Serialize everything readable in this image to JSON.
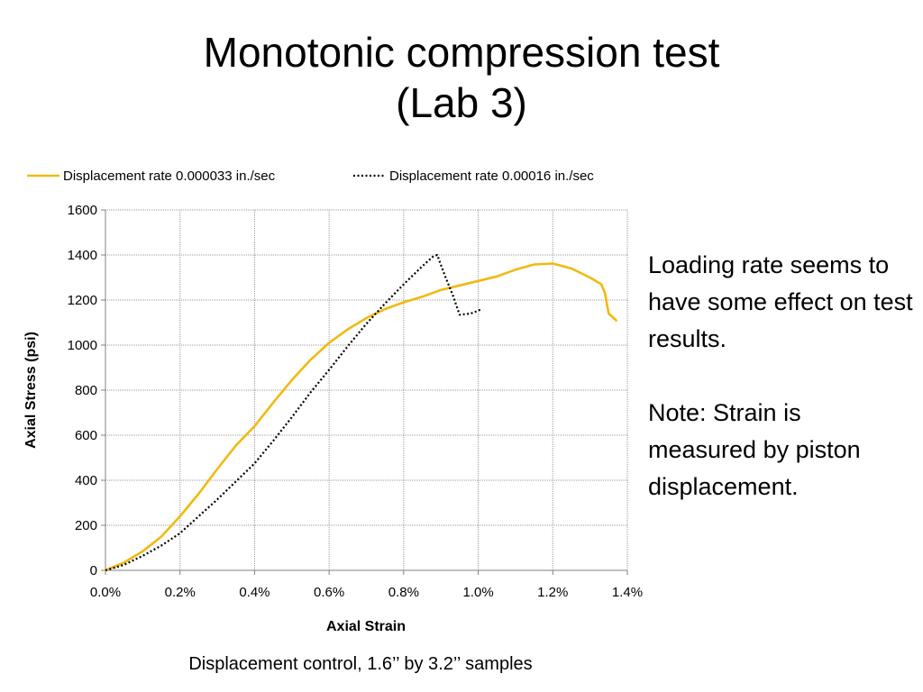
{
  "slide": {
    "title_line1": "Monotonic compression test",
    "title_line2": "(Lab 3)",
    "note_paragraph1": "Loading rate seems to have some effect on test results.",
    "note_paragraph2": "Note: Strain is measured by piston displacement.",
    "caption": "Displacement control, 1.6’’ by 3.2’’ samples"
  },
  "chart_data": {
    "type": "line",
    "xlabel": "Axial Strain",
    "ylabel": "Axial Stress (psi)",
    "xlim": [
      0.0,
      1.4
    ],
    "ylim": [
      0,
      1600
    ],
    "x_ticks": [
      0.0,
      0.2,
      0.4,
      0.6,
      0.8,
      1.0,
      1.2,
      1.4
    ],
    "x_tick_labels": [
      "0.0%",
      "0.2%",
      "0.4%",
      "0.6%",
      "0.8%",
      "1.0%",
      "1.2%",
      "1.4%"
    ],
    "y_ticks": [
      0,
      200,
      400,
      600,
      800,
      1000,
      1200,
      1400,
      1600
    ],
    "y_tick_labels": [
      "0",
      "200",
      "400",
      "600",
      "800",
      "1000",
      "1200",
      "1400",
      "1600"
    ],
    "grid": true,
    "legend_position": "top",
    "series": [
      {
        "name": "Displacement rate 0.000033 in./sec",
        "color": "#F2B90F",
        "style": "solid",
        "x": [
          0.0,
          0.05,
          0.1,
          0.15,
          0.2,
          0.25,
          0.3,
          0.35,
          0.4,
          0.45,
          0.5,
          0.55,
          0.6,
          0.65,
          0.7,
          0.75,
          0.8,
          0.85,
          0.9,
          0.95,
          1.0,
          1.05,
          1.1,
          1.15,
          1.2,
          1.25,
          1.3,
          1.33,
          1.34,
          1.35,
          1.37
        ],
        "y": [
          0,
          35,
          85,
          150,
          240,
          340,
          450,
          555,
          640,
          745,
          845,
          935,
          1010,
          1070,
          1120,
          1160,
          1190,
          1215,
          1245,
          1265,
          1285,
          1305,
          1335,
          1358,
          1362,
          1340,
          1300,
          1270,
          1230,
          1140,
          1110
        ]
      },
      {
        "name": "Displacement rate 0.00016 in./sec",
        "color": "#000000",
        "style": "dotted",
        "x": [
          0.0,
          0.05,
          0.1,
          0.15,
          0.2,
          0.25,
          0.3,
          0.35,
          0.4,
          0.45,
          0.5,
          0.55,
          0.6,
          0.65,
          0.7,
          0.75,
          0.8,
          0.85,
          0.88,
          0.89,
          0.91,
          0.93,
          0.95,
          0.98,
          1.01
        ],
        "y": [
          0,
          25,
          65,
          110,
          165,
          240,
          315,
          395,
          475,
          575,
          680,
          790,
          890,
          995,
          1095,
          1185,
          1270,
          1350,
          1395,
          1400,
          1310,
          1230,
          1135,
          1140,
          1160
        ]
      }
    ]
  }
}
